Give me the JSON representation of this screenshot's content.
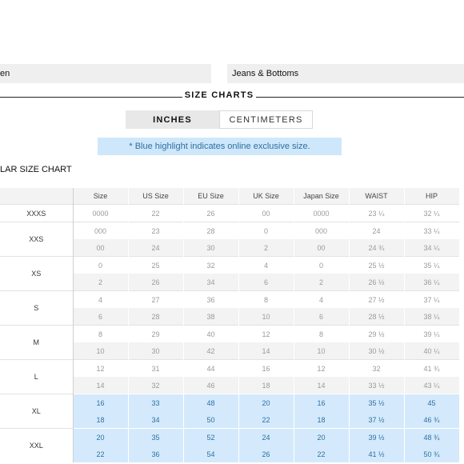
{
  "category_tabs": [
    "en",
    "Jeans & Bottoms"
  ],
  "section_title": "SIZE CHARTS",
  "unit_toggle": {
    "active": "INCHES",
    "inactive": "CENTIMETERS"
  },
  "note": "* Blue highlight indicates online exclusive size.",
  "chart_title": "LAR SIZE CHART",
  "highlight_color": "#d4eafc",
  "table": {
    "headers": [
      "",
      "Size",
      "US Size",
      "EU Size",
      "UK Size",
      "Japan Size",
      "WAIST",
      "HIP"
    ],
    "groups": [
      {
        "label": "XXXS",
        "online": false,
        "rows": [
          [
            "0000",
            "22",
            "26",
            "00",
            "0000",
            "23 ¼",
            "32 ¼"
          ]
        ]
      },
      {
        "label": "XXS",
        "online": false,
        "rows": [
          [
            "000",
            "23",
            "28",
            "0",
            "000",
            "24",
            "33 ¼"
          ],
          [
            "00",
            "24",
            "30",
            "2",
            "00",
            "24 ¾",
            "34 ¼"
          ]
        ]
      },
      {
        "label": "XS",
        "online": false,
        "rows": [
          [
            "0",
            "25",
            "32",
            "4",
            "0",
            "25 ½",
            "35 ¼"
          ],
          [
            "2",
            "26",
            "34",
            "6",
            "2",
            "26 ½",
            "36 ¼"
          ]
        ]
      },
      {
        "label": "S",
        "online": false,
        "rows": [
          [
            "4",
            "27",
            "36",
            "8",
            "4",
            "27 ½",
            "37 ¼"
          ],
          [
            "6",
            "28",
            "38",
            "10",
            "6",
            "28 ½",
            "38 ¼"
          ]
        ]
      },
      {
        "label": "M",
        "online": false,
        "rows": [
          [
            "8",
            "29",
            "40",
            "12",
            "8",
            "29 ½",
            "39 ¼"
          ],
          [
            "10",
            "30",
            "42",
            "14",
            "10",
            "30 ½",
            "40 ¼"
          ]
        ]
      },
      {
        "label": "L",
        "online": false,
        "rows": [
          [
            "12",
            "31",
            "44",
            "16",
            "12",
            "32",
            "41 ¾"
          ],
          [
            "14",
            "32",
            "46",
            "18",
            "14",
            "33 ½",
            "43 ¼"
          ]
        ]
      },
      {
        "label": "XL",
        "online": true,
        "rows": [
          [
            "16",
            "33",
            "48",
            "20",
            "16",
            "35 ½",
            "45"
          ],
          [
            "18",
            "34",
            "50",
            "22",
            "18",
            "37 ½",
            "46 ¾"
          ]
        ]
      },
      {
        "label": "XXL",
        "online": true,
        "rows": [
          [
            "20",
            "35",
            "52",
            "24",
            "20",
            "39 ½",
            "48 ¾"
          ],
          [
            "22",
            "36",
            "54",
            "26",
            "22",
            "41 ½",
            "50 ¾"
          ]
        ]
      }
    ]
  }
}
